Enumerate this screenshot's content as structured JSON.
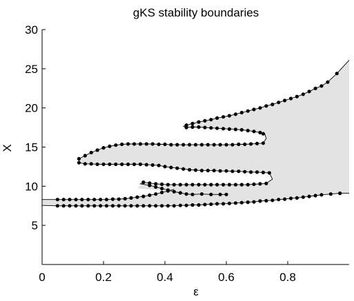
{
  "chart_data": {
    "type": "scatter",
    "title": "gKS stability boundaries",
    "xlabel": "ε",
    "ylabel": "X",
    "xlim": [
      0,
      1
    ],
    "ylim": [
      0,
      30
    ],
    "xticks": [
      0,
      0.2,
      0.4,
      0.6,
      0.8
    ],
    "yticks": [
      5,
      10,
      15,
      20,
      25,
      30
    ],
    "grid": false,
    "colors": {
      "region_fill": "#e3e3e3",
      "line": "#000000",
      "marker": "#000000"
    },
    "series": [
      {
        "points": [
          [
            0.05,
            7.5
          ],
          [
            0.07,
            7.5
          ],
          [
            0.09,
            7.5
          ],
          [
            0.11,
            7.5
          ],
          [
            0.13,
            7.5
          ],
          [
            0.15,
            7.5
          ],
          [
            0.17,
            7.5
          ],
          [
            0.19,
            7.5
          ],
          [
            0.21,
            7.5
          ],
          [
            0.23,
            7.5
          ],
          [
            0.25,
            7.5
          ],
          [
            0.27,
            7.5
          ],
          [
            0.29,
            7.5
          ],
          [
            0.31,
            7.5
          ],
          [
            0.33,
            7.5
          ],
          [
            0.35,
            7.5
          ],
          [
            0.37,
            7.5
          ],
          [
            0.39,
            7.5
          ],
          [
            0.41,
            7.5
          ],
          [
            0.43,
            7.5
          ],
          [
            0.45,
            7.55
          ],
          [
            0.47,
            7.55
          ],
          [
            0.49,
            7.6
          ],
          [
            0.51,
            7.6
          ],
          [
            0.53,
            7.65
          ],
          [
            0.55,
            7.7
          ],
          [
            0.57,
            7.75
          ],
          [
            0.59,
            7.75
          ],
          [
            0.61,
            7.8
          ],
          [
            0.63,
            7.85
          ],
          [
            0.65,
            7.9
          ],
          [
            0.67,
            7.95
          ],
          [
            0.69,
            8.0
          ],
          [
            0.71,
            8.1
          ],
          [
            0.73,
            8.15
          ],
          [
            0.75,
            8.2
          ],
          [
            0.77,
            8.3
          ],
          [
            0.79,
            8.35
          ],
          [
            0.81,
            8.45
          ],
          [
            0.83,
            8.5
          ],
          [
            0.85,
            8.6
          ],
          [
            0.87,
            8.7
          ],
          [
            0.89,
            8.8
          ],
          [
            0.91,
            8.9
          ],
          [
            0.94,
            9.0
          ],
          [
            0.97,
            9.1
          ],
          [
            0.05,
            8.3
          ],
          [
            0.07,
            8.3
          ],
          [
            0.09,
            8.3
          ],
          [
            0.11,
            8.3
          ],
          [
            0.13,
            8.3
          ],
          [
            0.15,
            8.3
          ],
          [
            0.17,
            8.3
          ],
          [
            0.19,
            8.3
          ],
          [
            0.21,
            8.3
          ],
          [
            0.23,
            8.35
          ],
          [
            0.25,
            8.35
          ],
          [
            0.27,
            8.4
          ],
          [
            0.29,
            8.5
          ],
          [
            0.31,
            8.6
          ],
          [
            0.33,
            8.7
          ],
          [
            0.35,
            8.85
          ],
          [
            0.37,
            9.0
          ],
          [
            0.39,
            9.2
          ],
          [
            0.41,
            9.4
          ],
          [
            0.33,
            10.5
          ],
          [
            0.35,
            10.4
          ],
          [
            0.37,
            10.3
          ],
          [
            0.39,
            10.25
          ],
          [
            0.41,
            10.2
          ],
          [
            0.43,
            10.2
          ],
          [
            0.45,
            10.2
          ],
          [
            0.47,
            10.2
          ],
          [
            0.49,
            10.2
          ],
          [
            0.51,
            10.2
          ],
          [
            0.53,
            10.2
          ],
          [
            0.55,
            10.2
          ],
          [
            0.57,
            10.2
          ],
          [
            0.59,
            10.2
          ],
          [
            0.61,
            10.2
          ],
          [
            0.63,
            10.2
          ],
          [
            0.65,
            10.2
          ],
          [
            0.67,
            10.2
          ],
          [
            0.69,
            10.25
          ],
          [
            0.71,
            10.3
          ],
          [
            0.73,
            10.35
          ],
          [
            0.35,
            10.1
          ],
          [
            0.37,
            9.9
          ],
          [
            0.39,
            9.7
          ],
          [
            0.41,
            9.5
          ],
          [
            0.43,
            9.3
          ],
          [
            0.45,
            9.15
          ],
          [
            0.47,
            9.0
          ],
          [
            0.49,
            8.95
          ],
          [
            0.52,
            9.0
          ],
          [
            0.55,
            8.95
          ],
          [
            0.58,
            8.95
          ],
          [
            0.6,
            8.95
          ],
          [
            0.12,
            13.0
          ],
          [
            0.14,
            12.85
          ],
          [
            0.16,
            12.85
          ],
          [
            0.18,
            12.8
          ],
          [
            0.2,
            12.8
          ],
          [
            0.22,
            12.8
          ],
          [
            0.24,
            12.8
          ],
          [
            0.26,
            12.8
          ],
          [
            0.28,
            12.8
          ],
          [
            0.3,
            12.8
          ],
          [
            0.32,
            12.8
          ],
          [
            0.34,
            12.75
          ],
          [
            0.36,
            12.7
          ],
          [
            0.38,
            12.65
          ],
          [
            0.4,
            12.5
          ],
          [
            0.42,
            12.4
          ],
          [
            0.44,
            12.3
          ],
          [
            0.46,
            12.2
          ],
          [
            0.48,
            12.1
          ],
          [
            0.5,
            12.05
          ],
          [
            0.52,
            12.0
          ],
          [
            0.54,
            12.0
          ],
          [
            0.56,
            12.0
          ],
          [
            0.58,
            11.95
          ],
          [
            0.6,
            11.95
          ],
          [
            0.62,
            11.9
          ],
          [
            0.64,
            11.9
          ],
          [
            0.66,
            11.85
          ],
          [
            0.68,
            11.8
          ],
          [
            0.7,
            11.8
          ],
          [
            0.72,
            11.75
          ],
          [
            0.74,
            11.7
          ],
          [
            0.12,
            13.5
          ],
          [
            0.14,
            13.9
          ],
          [
            0.16,
            14.3
          ],
          [
            0.18,
            14.6
          ],
          [
            0.2,
            14.9
          ],
          [
            0.22,
            15.1
          ],
          [
            0.24,
            15.25
          ],
          [
            0.26,
            15.35
          ],
          [
            0.28,
            15.4
          ],
          [
            0.3,
            15.4
          ],
          [
            0.32,
            15.4
          ],
          [
            0.34,
            15.4
          ],
          [
            0.36,
            15.4
          ],
          [
            0.38,
            15.35
          ],
          [
            0.4,
            15.35
          ],
          [
            0.42,
            15.3
          ],
          [
            0.44,
            15.3
          ],
          [
            0.46,
            15.3
          ],
          [
            0.48,
            15.3
          ],
          [
            0.5,
            15.3
          ],
          [
            0.52,
            15.3
          ],
          [
            0.54,
            15.3
          ],
          [
            0.56,
            15.3
          ],
          [
            0.58,
            15.3
          ],
          [
            0.6,
            15.3
          ],
          [
            0.62,
            15.3
          ],
          [
            0.64,
            15.35
          ],
          [
            0.66,
            15.35
          ],
          [
            0.68,
            15.4
          ],
          [
            0.7,
            15.45
          ],
          [
            0.72,
            15.5
          ],
          [
            0.47,
            17.5
          ],
          [
            0.49,
            17.55
          ],
          [
            0.51,
            17.55
          ],
          [
            0.53,
            17.5
          ],
          [
            0.55,
            17.45
          ],
          [
            0.57,
            17.4
          ],
          [
            0.59,
            17.35
          ],
          [
            0.61,
            17.3
          ],
          [
            0.63,
            17.25
          ],
          [
            0.65,
            17.2
          ],
          [
            0.67,
            17.1
          ],
          [
            0.69,
            17.0
          ],
          [
            0.71,
            16.85
          ],
          [
            0.72,
            16.7
          ],
          [
            0.47,
            17.8
          ],
          [
            0.49,
            18.0
          ],
          [
            0.51,
            18.2
          ],
          [
            0.53,
            18.35
          ],
          [
            0.55,
            18.5
          ],
          [
            0.57,
            18.7
          ],
          [
            0.59,
            18.85
          ],
          [
            0.61,
            19.0
          ],
          [
            0.63,
            19.2
          ],
          [
            0.65,
            19.4
          ],
          [
            0.67,
            19.6
          ],
          [
            0.69,
            19.8
          ],
          [
            0.71,
            20.0
          ],
          [
            0.73,
            20.25
          ],
          [
            0.75,
            20.45
          ],
          [
            0.77,
            20.7
          ],
          [
            0.79,
            20.95
          ],
          [
            0.81,
            21.2
          ],
          [
            0.83,
            21.45
          ],
          [
            0.85,
            21.75
          ],
          [
            0.87,
            22.1
          ],
          [
            0.89,
            22.5
          ],
          [
            0.91,
            22.8
          ],
          [
            0.93,
            23.3
          ],
          [
            0.96,
            24.4
          ]
        ]
      }
    ]
  }
}
